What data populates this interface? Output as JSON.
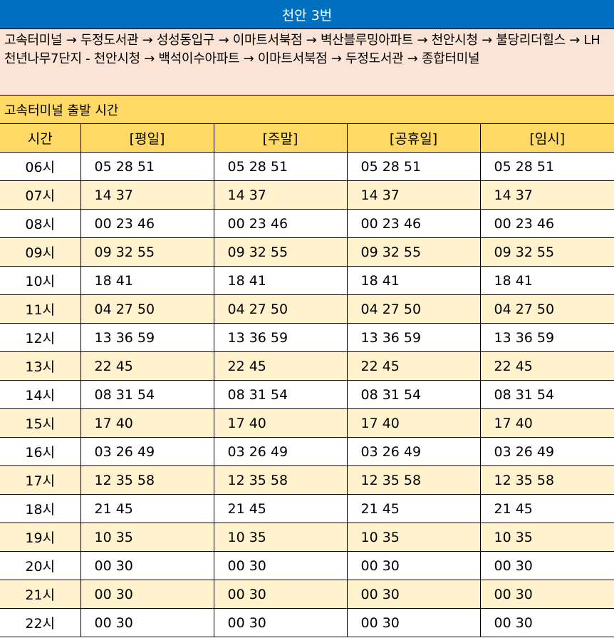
{
  "title": "천안 3번",
  "route": "고속터미널 → 두정도서관 → 성성동입구 → 이마트서북점 → 벽산블루밍아파트 → 천안시청 → 불당리더힐스 → LH천년나무7단지 - 천안시청 → 백석이수아파트 → 이마트서북점 → 두정도서관 → 종합터미널",
  "section_label": "고속터미널 출발 시간",
  "headers": [
    "시간",
    "[평일]",
    "[주말]",
    "[공휴일]",
    "[임시]"
  ],
  "rows": [
    {
      "hour": "06시",
      "times": [
        "05 28 51",
        "05 28 51",
        "05 28 51",
        "05 28 51"
      ]
    },
    {
      "hour": "07시",
      "times": [
        "14 37",
        "14 37",
        "14 37",
        "14 37"
      ]
    },
    {
      "hour": "08시",
      "times": [
        "00 23 46",
        "00 23 46",
        "00 23 46",
        "00 23 46"
      ]
    },
    {
      "hour": "09시",
      "times": [
        "09 32 55",
        "09 32 55",
        "09 32 55",
        "09 32 55"
      ]
    },
    {
      "hour": "10시",
      "times": [
        "18 41",
        "18 41",
        "18 41",
        "18 41"
      ]
    },
    {
      "hour": "11시",
      "times": [
        "04 27 50",
        "04 27 50",
        "04 27 50",
        "04 27 50"
      ]
    },
    {
      "hour": "12시",
      "times": [
        "13 36 59",
        "13 36 59",
        "13 36 59",
        "13 36 59"
      ]
    },
    {
      "hour": "13시",
      "times": [
        "22 45",
        "22 45",
        "22 45",
        "22 45"
      ]
    },
    {
      "hour": "14시",
      "times": [
        "08 31 54",
        "08 31 54",
        "08 31 54",
        "08 31 54"
      ]
    },
    {
      "hour": "15시",
      "times": [
        "17 40",
        "17 40",
        "17 40",
        "17 40"
      ]
    },
    {
      "hour": "16시",
      "times": [
        "03 26 49",
        "03 26 49",
        "03 26 49",
        "03 26 49"
      ]
    },
    {
      "hour": "17시",
      "times": [
        "12 35 58",
        "12 35 58",
        "12 35 58",
        "12 35 58"
      ]
    },
    {
      "hour": "18시",
      "times": [
        "21 45",
        "21 45",
        "21 45",
        "21 45"
      ]
    },
    {
      "hour": "19시",
      "times": [
        "10 35",
        "10 35",
        "10 35",
        "10 35"
      ]
    },
    {
      "hour": "20시",
      "times": [
        "00 30",
        "00 30",
        "00 30",
        "00 30"
      ]
    },
    {
      "hour": "21시",
      "times": [
        "00 30",
        "00 30",
        "00 30",
        "00 30"
      ]
    },
    {
      "hour": "22시",
      "times": [
        "00 30",
        "00 30",
        "00 30",
        "00 30"
      ]
    }
  ],
  "colors": {
    "title_bg": "#0070c0",
    "route_bg": "#fbe4d5",
    "header_bg": "#ffd966",
    "alt_row_bg": "#fff2cc"
  }
}
